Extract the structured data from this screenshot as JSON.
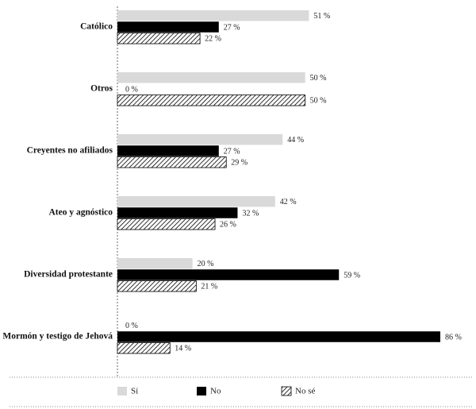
{
  "chart_data": {
    "type": "bar",
    "orientation": "horizontal",
    "categories": [
      "Católico",
      "Otros",
      "Creyentes no afiliados",
      "Ateo y agnóstico",
      "Diversidad protestante",
      "Mormón y testigo de Jehová"
    ],
    "xlim": [
      0,
      100
    ],
    "series": [
      {
        "name": "Sí",
        "color": "#d9d9d9",
        "values": [
          51,
          50,
          44,
          42,
          20,
          0
        ],
        "value_labels": [
          "51 %",
          "50 %",
          "44 %",
          "42 %",
          "20 %",
          "0 %"
        ]
      },
      {
        "name": "No",
        "color": "#000000",
        "values": [
          27,
          0,
          27,
          32,
          59,
          86
        ],
        "value_labels": [
          "27 %",
          "0 %",
          "27 %",
          "32 %",
          "59 %",
          "86 %"
        ]
      },
      {
        "name": "No sé",
        "color": "#000000",
        "pattern": "diagonal-hatch",
        "values": [
          22,
          50,
          29,
          26,
          21,
          14
        ],
        "value_labels": [
          "22 %",
          "50 %",
          "29 %",
          "26 %",
          "21 %",
          "14 %"
        ]
      }
    ],
    "legend": "bottom"
  }
}
